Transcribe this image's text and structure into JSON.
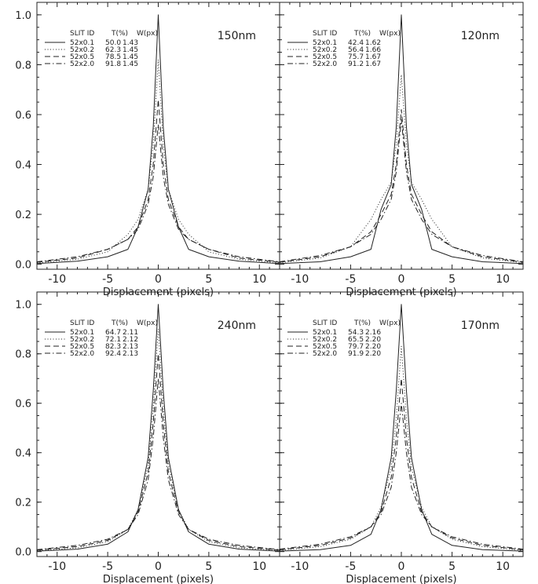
{
  "chart_data": [
    {
      "type": "line",
      "title": "150nm",
      "xlabel": "Displacement (pixels)",
      "ylabel": "",
      "xlim": [
        -12,
        12
      ],
      "ylim": [
        -0.02,
        1.05
      ],
      "x_ticks": [
        -10,
        -5,
        0,
        5,
        10
      ],
      "y_ticks": [
        0.0,
        0.2,
        0.4,
        0.6,
        0.8,
        1.0
      ],
      "legend_headers": [
        "SLIT ID",
        "T(%)",
        "W(px)"
      ],
      "series": [
        {
          "name": "52x0.1",
          "style": "solid",
          "T": "50.0",
          "W": "1.43",
          "peak": 1.0,
          "x": [
            -12,
            -8,
            -5,
            -3,
            -2,
            -1,
            -0.5,
            0,
            0.5,
            1,
            2,
            3,
            5,
            8,
            12
          ],
          "y": [
            0.003,
            0.012,
            0.03,
            0.06,
            0.15,
            0.3,
            0.55,
            1.0,
            0.55,
            0.3,
            0.15,
            0.06,
            0.03,
            0.012,
            0.003
          ]
        },
        {
          "name": "52x0.2",
          "style": "dotted",
          "T": "62.3",
          "W": "1.45",
          "peak": 0.82,
          "x": [
            -12,
            -8,
            -5,
            -3,
            -2,
            -1,
            -0.5,
            0,
            0.5,
            1,
            2,
            3,
            5,
            8,
            12
          ],
          "y": [
            0.005,
            0.02,
            0.05,
            0.12,
            0.18,
            0.3,
            0.48,
            0.82,
            0.48,
            0.3,
            0.18,
            0.12,
            0.05,
            0.02,
            0.005
          ]
        },
        {
          "name": "52x0.5",
          "style": "dashed",
          "T": "78.5",
          "W": "1.45",
          "peak": 0.66,
          "x": [
            -12,
            -8,
            -5,
            -3,
            -2,
            -1,
            -0.5,
            0,
            0.5,
            1,
            2,
            3,
            5,
            8,
            12
          ],
          "y": [
            0.008,
            0.025,
            0.06,
            0.1,
            0.15,
            0.26,
            0.4,
            0.66,
            0.4,
            0.26,
            0.15,
            0.1,
            0.06,
            0.025,
            0.008
          ]
        },
        {
          "name": "52x2.0",
          "style": "dashdot",
          "T": "91.8",
          "W": "1.45",
          "peak": 0.56,
          "x": [
            -12,
            -8,
            -5,
            -3,
            -2,
            -1,
            -0.5,
            0,
            0.5,
            1,
            2,
            3,
            5,
            8,
            12
          ],
          "y": [
            0.01,
            0.03,
            0.06,
            0.1,
            0.14,
            0.24,
            0.35,
            0.56,
            0.35,
            0.24,
            0.14,
            0.1,
            0.06,
            0.03,
            0.01
          ]
        }
      ]
    },
    {
      "type": "line",
      "title": "120nm",
      "xlabel": "Displacement (pixels)",
      "ylabel": "",
      "xlim": [
        -12,
        12
      ],
      "ylim": [
        -0.02,
        1.05
      ],
      "x_ticks": [
        -10,
        -5,
        0,
        5,
        10
      ],
      "y_ticks": [
        0.0,
        0.2,
        0.4,
        0.6,
        0.8,
        1.0
      ],
      "legend_headers": [
        "SLIT ID",
        "T(%)",
        "W(px)"
      ],
      "series": [
        {
          "name": "52x0.1",
          "style": "solid",
          "T": "42.4",
          "W": "1.62",
          "peak": 1.0,
          "x": [
            -12,
            -8,
            -5,
            -3,
            -2,
            -1,
            -0.5,
            0,
            0.5,
            1,
            2,
            3,
            5,
            8,
            12
          ],
          "y": [
            0.003,
            0.01,
            0.03,
            0.06,
            0.22,
            0.32,
            0.55,
            1.0,
            0.55,
            0.32,
            0.22,
            0.06,
            0.03,
            0.01,
            0.003
          ]
        },
        {
          "name": "52x0.2",
          "style": "dotted",
          "T": "56.4",
          "W": "1.66",
          "peak": 0.76,
          "x": [
            -12,
            -8,
            -5,
            -3,
            -2,
            -1,
            -0.5,
            0,
            0.5,
            1,
            2,
            3,
            5,
            8,
            12
          ],
          "y": [
            0.006,
            0.025,
            0.07,
            0.18,
            0.26,
            0.33,
            0.48,
            0.76,
            0.48,
            0.33,
            0.26,
            0.18,
            0.07,
            0.025,
            0.006
          ]
        },
        {
          "name": "52x0.5",
          "style": "dashed",
          "T": "75.7",
          "W": "1.67",
          "peak": 0.62,
          "x": [
            -12,
            -8,
            -5,
            -3,
            -2,
            -1,
            -0.5,
            0,
            0.5,
            1,
            2,
            3,
            5,
            8,
            12
          ],
          "y": [
            0.008,
            0.03,
            0.07,
            0.13,
            0.2,
            0.28,
            0.4,
            0.62,
            0.4,
            0.28,
            0.2,
            0.13,
            0.07,
            0.03,
            0.008
          ]
        },
        {
          "name": "52x2.0",
          "style": "dashdot",
          "T": "91.2",
          "W": "1.67",
          "peak": 0.58,
          "x": [
            -12,
            -8,
            -5,
            -3,
            -2,
            -1,
            -0.5,
            0,
            0.5,
            1,
            2,
            3,
            5,
            8,
            12
          ],
          "y": [
            0.01,
            0.035,
            0.07,
            0.12,
            0.18,
            0.26,
            0.37,
            0.58,
            0.37,
            0.26,
            0.18,
            0.12,
            0.07,
            0.035,
            0.01
          ]
        }
      ]
    },
    {
      "type": "line",
      "title": "240nm",
      "xlabel": "Displacement (pixels)",
      "ylabel": "",
      "xlim": [
        -12,
        12
      ],
      "ylim": [
        -0.02,
        1.05
      ],
      "x_ticks": [
        -10,
        -5,
        0,
        5,
        10
      ],
      "y_ticks": [
        0.0,
        0.2,
        0.4,
        0.6,
        0.8,
        1.0
      ],
      "legend_headers": [
        "SLIT ID",
        "T(%)",
        "W(px)"
      ],
      "series": [
        {
          "name": "52x0.1",
          "style": "solid",
          "T": "64.7",
          "W": "2.11",
          "peak": 1.0,
          "x": [
            -12,
            -8,
            -5,
            -3,
            -2,
            -1,
            -0.5,
            0,
            0.5,
            1,
            2,
            3,
            5,
            8,
            12
          ],
          "y": [
            0.002,
            0.01,
            0.03,
            0.08,
            0.17,
            0.38,
            0.65,
            1.0,
            0.65,
            0.38,
            0.17,
            0.08,
            0.03,
            0.01,
            0.002
          ]
        },
        {
          "name": "52x0.2",
          "style": "dotted",
          "T": "72.1",
          "W": "2.12",
          "peak": 0.9,
          "x": [
            -12,
            -8,
            -5,
            -3,
            -2,
            -1,
            -0.5,
            0,
            0.5,
            1,
            2,
            3,
            5,
            8,
            12
          ],
          "y": [
            0.004,
            0.015,
            0.04,
            0.09,
            0.17,
            0.35,
            0.58,
            0.9,
            0.58,
            0.35,
            0.17,
            0.09,
            0.04,
            0.015,
            0.004
          ]
        },
        {
          "name": "52x0.5",
          "style": "dashed",
          "T": "82.3",
          "W": "2.13",
          "peak": 0.8,
          "x": [
            -12,
            -8,
            -5,
            -3,
            -2,
            -1,
            -0.5,
            0,
            0.5,
            1,
            2,
            3,
            5,
            8,
            12
          ],
          "y": [
            0.006,
            0.02,
            0.045,
            0.09,
            0.16,
            0.32,
            0.52,
            0.8,
            0.52,
            0.32,
            0.16,
            0.09,
            0.045,
            0.02,
            0.006
          ]
        },
        {
          "name": "52x2.0",
          "style": "dashdot",
          "T": "92.4",
          "W": "2.13",
          "peak": 0.7,
          "x": [
            -12,
            -8,
            -5,
            -3,
            -2,
            -1,
            -0.5,
            0,
            0.5,
            1,
            2,
            3,
            5,
            8,
            12
          ],
          "y": [
            0.008,
            0.025,
            0.05,
            0.09,
            0.15,
            0.29,
            0.46,
            0.7,
            0.46,
            0.29,
            0.15,
            0.09,
            0.05,
            0.025,
            0.008
          ]
        }
      ]
    },
    {
      "type": "line",
      "title": "170nm",
      "xlabel": "Displacement (pixels)",
      "ylabel": "",
      "xlim": [
        -12,
        12
      ],
      "ylim": [
        -0.02,
        1.05
      ],
      "x_ticks": [
        -10,
        -5,
        0,
        5,
        10
      ],
      "y_ticks": [
        0.0,
        0.2,
        0.4,
        0.6,
        0.8,
        1.0
      ],
      "legend_headers": [
        "SLIT ID",
        "T(%)",
        "W(px)"
      ],
      "series": [
        {
          "name": "52x0.1",
          "style": "solid",
          "T": "54.3",
          "W": "2.16",
          "peak": 1.0,
          "x": [
            -12,
            -8,
            -5,
            -3,
            -2,
            -1,
            -0.5,
            0,
            0.5,
            1,
            2,
            3,
            5,
            8,
            12
          ],
          "y": [
            0.002,
            0.008,
            0.025,
            0.07,
            0.17,
            0.38,
            0.65,
            1.0,
            0.65,
            0.38,
            0.17,
            0.07,
            0.025,
            0.008,
            0.002
          ]
        },
        {
          "name": "52x0.2",
          "style": "dotted",
          "T": "65.5",
          "W": "2.20",
          "peak": 0.83,
          "x": [
            -12,
            -8,
            -5,
            -3,
            -2,
            -1,
            -0.5,
            0,
            0.5,
            1,
            2,
            3,
            5,
            8,
            12
          ],
          "y": [
            0.005,
            0.02,
            0.05,
            0.1,
            0.18,
            0.34,
            0.54,
            0.83,
            0.54,
            0.34,
            0.18,
            0.1,
            0.05,
            0.02,
            0.005
          ]
        },
        {
          "name": "52x0.5",
          "style": "dashed",
          "T": "79.7",
          "W": "2.20",
          "peak": 0.7,
          "x": [
            -12,
            -8,
            -5,
            -3,
            -2,
            -1,
            -0.5,
            0,
            0.5,
            1,
            2,
            3,
            5,
            8,
            12
          ],
          "y": [
            0.007,
            0.025,
            0.055,
            0.1,
            0.16,
            0.3,
            0.46,
            0.7,
            0.46,
            0.3,
            0.16,
            0.1,
            0.055,
            0.025,
            0.007
          ]
        },
        {
          "name": "52x2.0",
          "style": "dashdot",
          "T": "91.9",
          "W": "2.20",
          "peak": 0.6,
          "x": [
            -12,
            -8,
            -5,
            -3,
            -2,
            -1,
            -0.5,
            0,
            0.5,
            1,
            2,
            3,
            5,
            8,
            12
          ],
          "y": [
            0.01,
            0.03,
            0.06,
            0.1,
            0.15,
            0.26,
            0.4,
            0.6,
            0.4,
            0.26,
            0.15,
            0.1,
            0.06,
            0.03,
            0.01
          ]
        }
      ]
    }
  ]
}
